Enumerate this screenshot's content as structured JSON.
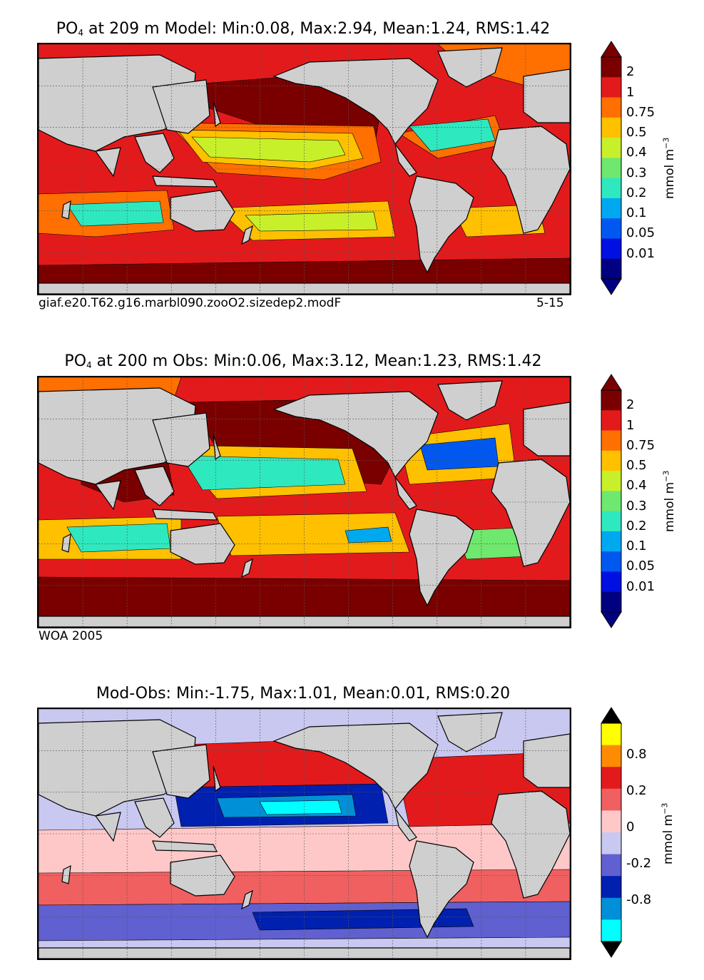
{
  "chart_data": [
    {
      "type": "heatmap",
      "variable": "PO",
      "subscript": "4",
      "title_rest": "at 209 m Model: Min:0.08, Max:2.94, Mean:1.24, RMS:1.42",
      "stats": {
        "min": 0.08,
        "max": 2.94,
        "mean": 1.24,
        "rms": 1.42
      },
      "depth_m": 209,
      "caption_left": "giaf.e20.T62.g16.marbl090.zooO2.sizedep2.modF",
      "caption_right": "5-15",
      "colorbar_label": "mmol m",
      "colorbar_label_exp": "−3",
      "levels": [
        "2",
        "1",
        "0.75",
        "0.5",
        "0.4",
        "0.3",
        "0.2",
        "0.1",
        "0.05",
        "0.01"
      ],
      "colors": [
        "#7a0000",
        "#e31a1c",
        "#ff7000",
        "#ffc000",
        "#c8f02a",
        "#6ee86e",
        "#2ee8c0",
        "#00a8f0",
        "#0058f0",
        "#0010e0",
        "#000080"
      ],
      "extend_top_color": "#7a0000",
      "extend_bottom_color": "#000080"
    },
    {
      "type": "heatmap",
      "variable": "PO",
      "subscript": "4",
      "title_rest": "at 200 m Obs: Min:0.06, Max:3.12, Mean:1.23, RMS:1.42",
      "stats": {
        "min": 0.06,
        "max": 3.12,
        "mean": 1.23,
        "rms": 1.42
      },
      "depth_m": 200,
      "caption_left": "WOA 2005",
      "caption_right": "",
      "colorbar_label": "mmol m",
      "colorbar_label_exp": "−3",
      "levels": [
        "2",
        "1",
        "0.75",
        "0.5",
        "0.4",
        "0.3",
        "0.2",
        "0.1",
        "0.05",
        "0.01"
      ],
      "colors": [
        "#7a0000",
        "#e31a1c",
        "#ff7000",
        "#ffc000",
        "#c8f02a",
        "#6ee86e",
        "#2ee8c0",
        "#00a8f0",
        "#0058f0",
        "#0010e0",
        "#000080"
      ],
      "extend_top_color": "#7a0000",
      "extend_bottom_color": "#000080"
    },
    {
      "type": "heatmap",
      "variable": "",
      "subscript": "",
      "title_rest": "Mod-Obs: Min:-1.75, Max:1.01, Mean:0.01, RMS:0.20",
      "stats": {
        "min": -1.75,
        "max": 1.01,
        "mean": 0.01,
        "rms": 0.2
      },
      "caption_left": "",
      "caption_right": "",
      "colorbar_label": "mmol m",
      "colorbar_label_exp": "−3",
      "levels": [
        "0.8",
        "0.2",
        "0",
        "-0.2",
        "-0.8"
      ],
      "colors": [
        "#ffff00",
        "#ff8c00",
        "#e31a1c",
        "#f06060",
        "#ffc8c8",
        "#c8c8f0",
        "#6060d0",
        "#0020b0",
        "#0090d8",
        "#00ffff"
      ],
      "extend_top_color": "#000000",
      "extend_bottom_color": "#000000"
    }
  ]
}
